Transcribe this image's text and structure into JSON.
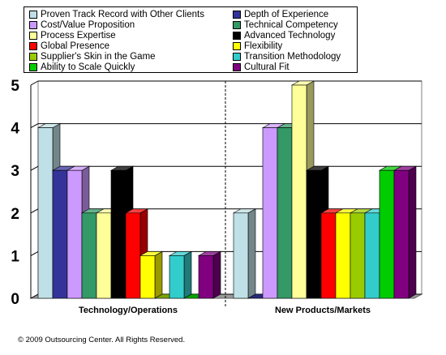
{
  "chart_data": {
    "type": "bar",
    "categories": [
      "Technology/Operations",
      "New Products/Markets"
    ],
    "ylim": [
      0,
      5
    ],
    "yticks": [
      "0",
      "1",
      "2",
      "3",
      "4",
      "5"
    ],
    "grid": true,
    "legend_position": "top",
    "series": [
      {
        "name": "Proven Track Record with Other Clients",
        "color": "#bfe0e6",
        "values": [
          4,
          2
        ]
      },
      {
        "name": "Depth of Experience",
        "color": "#333399",
        "values": [
          3,
          0
        ]
      },
      {
        "name": "Cost/Value Proposition",
        "color": "#cc99ff",
        "values": [
          3,
          4
        ]
      },
      {
        "name": "Technical Competency",
        "color": "#339966",
        "values": [
          2,
          4
        ]
      },
      {
        "name": "Process Expertise",
        "color": "#ffff99",
        "values": [
          2,
          5
        ]
      },
      {
        "name": "Advanced Technology",
        "color": "#000000",
        "values": [
          3,
          3
        ]
      },
      {
        "name": "Global Presence",
        "color": "#ff0000",
        "values": [
          2,
          2
        ]
      },
      {
        "name": "Flexibility",
        "color": "#ffff00",
        "values": [
          1,
          2
        ]
      },
      {
        "name": "Supplier's Skin in the Game",
        "color": "#99cc00",
        "values": [
          0,
          2
        ]
      },
      {
        "name": "Transition Methodology",
        "color": "#33cccc",
        "values": [
          1,
          2
        ]
      },
      {
        "name": "Ability to Scale Quickly",
        "color": "#00cc00",
        "values": [
          0,
          3
        ]
      },
      {
        "name": "Cultural Fit",
        "color": "#800080",
        "values": [
          1,
          3
        ]
      }
    ]
  },
  "footer": {
    "copyright": "© 2009 Outsourcing Center. All Rights Reserved."
  }
}
